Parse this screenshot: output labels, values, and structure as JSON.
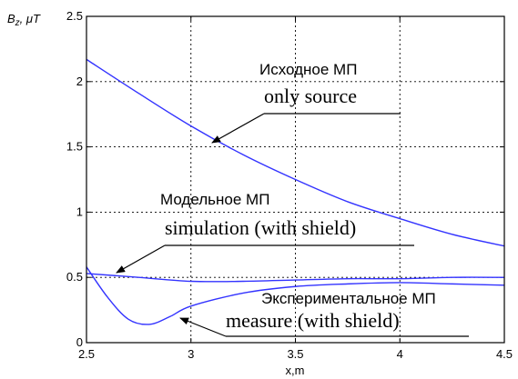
{
  "chart_data": {
    "type": "line",
    "xlabel": "x,m",
    "ylabel": "B_z, μT",
    "xlim": [
      2.5,
      4.5
    ],
    "ylim": [
      0,
      2.5
    ],
    "x_ticks": [
      "2.5",
      "3",
      "3.5",
      "4",
      "4.5"
    ],
    "y_ticks": [
      "0",
      "0.5",
      "1",
      "1.5",
      "2",
      "2.5"
    ],
    "grid": true,
    "line_color": "#3333ff",
    "series": [
      {
        "name": "only source",
        "x": [
          2.5,
          2.75,
          3.0,
          3.25,
          3.5,
          3.75,
          4.0,
          4.25,
          4.5
        ],
        "values": [
          2.17,
          1.91,
          1.66,
          1.44,
          1.25,
          1.08,
          0.95,
          0.83,
          0.74
        ]
      },
      {
        "name": "simulation (with shield)",
        "x": [
          2.5,
          2.75,
          3.0,
          3.25,
          3.5,
          3.75,
          4.0,
          4.25,
          4.5
        ],
        "values": [
          0.53,
          0.5,
          0.47,
          0.47,
          0.48,
          0.49,
          0.49,
          0.5,
          0.5
        ]
      },
      {
        "name": "measure (with shield)",
        "x": [
          2.5,
          2.6,
          2.7,
          2.8,
          2.9,
          3.0,
          3.25,
          3.5,
          3.75,
          4.0,
          4.25,
          4.5
        ],
        "values": [
          0.58,
          0.35,
          0.18,
          0.14,
          0.2,
          0.28,
          0.38,
          0.43,
          0.45,
          0.46,
          0.45,
          0.44
        ]
      }
    ],
    "annotations": [
      {
        "ru": "Исходное МП",
        "en": "only source"
      },
      {
        "ru": "Модельное МП",
        "en": "simulation (with shield)"
      },
      {
        "ru": "Экспериментальное МП",
        "en": "measure (with shield)"
      }
    ]
  }
}
